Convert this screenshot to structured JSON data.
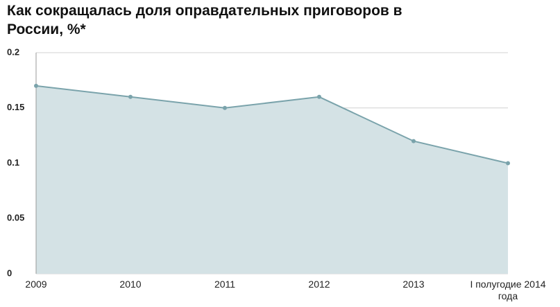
{
  "chart_data": {
    "type": "area",
    "title": "Как сокращалась доля оправдательных приговоров в России, %*",
    "categories": [
      "2009",
      "2010",
      "2011",
      "2012",
      "2013",
      "I полугодие 2014 года"
    ],
    "values": [
      0.17,
      0.16,
      0.15,
      0.16,
      0.12,
      0.1
    ],
    "color": "#7aa3ab",
    "fill_color": "#d4e2e5",
    "ylim": [
      0,
      0.2
    ],
    "yticks": [
      0,
      0.05,
      0.1,
      0.15,
      0.2
    ],
    "grid": true
  }
}
